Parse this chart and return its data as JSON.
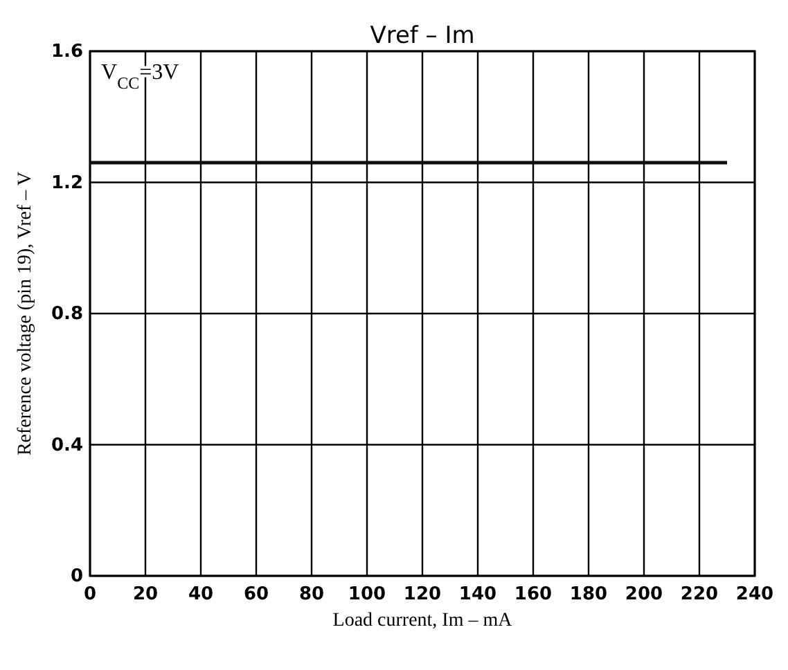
{
  "chart_data": {
    "type": "line",
    "title": "Vref  –  Im",
    "xlabel": "Load current, Im – mA",
    "ylabel": "Reference voltage (pin 19), Vref – V",
    "annotations": [
      "V$_{CC}$=3V"
    ],
    "x": [
      0,
      230
    ],
    "series": [
      {
        "color": "#111111",
        "values": [
          1.26,
          1.26
        ]
      }
    ],
    "xlim": [
      0,
      240
    ],
    "xticks": [
      0,
      20,
      40,
      60,
      80,
      100,
      120,
      140,
      160,
      180,
      200,
      220,
      240
    ],
    "ylim": [
      0,
      1.6
    ],
    "yticks": [
      0,
      0.4,
      0.8,
      1.2,
      1.6
    ],
    "grid": true,
    "marker": "none",
    "line_style": "solid"
  }
}
